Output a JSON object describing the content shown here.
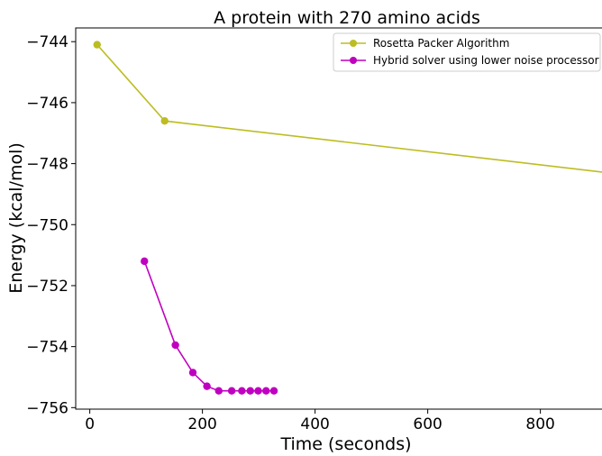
{
  "chart_data": {
    "type": "line",
    "title": "A protein with 270 amino acids",
    "xlabel": "Time (seconds)",
    "ylabel": "Energy (kcal/mol)",
    "xlim": [
      -25,
      935
    ],
    "ylim": [
      -756.05,
      -743.55
    ],
    "xticks": [
      0,
      200,
      400,
      600,
      800
    ],
    "yticks": [
      -756,
      -754,
      -752,
      -750,
      -748,
      -746,
      -744
    ],
    "x_tick_labels": [
      "0",
      "200",
      "400",
      "600",
      "800"
    ],
    "y_tick_labels": [
      "−756",
      "−754",
      "−752",
      "−750",
      "−748",
      "−746",
      "−744"
    ],
    "grid": false,
    "legend_position": "top-right",
    "series": [
      {
        "name": "Rosetta Packer Algorithm",
        "color": "#bcbd22",
        "x": [
          13,
          133,
          920
        ],
        "y": [
          -744.1,
          -746.6,
          -748.3
        ]
      },
      {
        "name": "Hybrid solver using lower noise processor",
        "color": "#c000c0",
        "x": [
          97,
          152,
          183,
          208,
          229,
          252,
          270,
          285,
          299,
          313,
          327
        ],
        "y": [
          -751.2,
          -753.95,
          -754.85,
          -755.3,
          -755.45,
          -755.45,
          -755.45,
          -755.45,
          -755.45,
          -755.45,
          -755.45
        ]
      }
    ]
  }
}
